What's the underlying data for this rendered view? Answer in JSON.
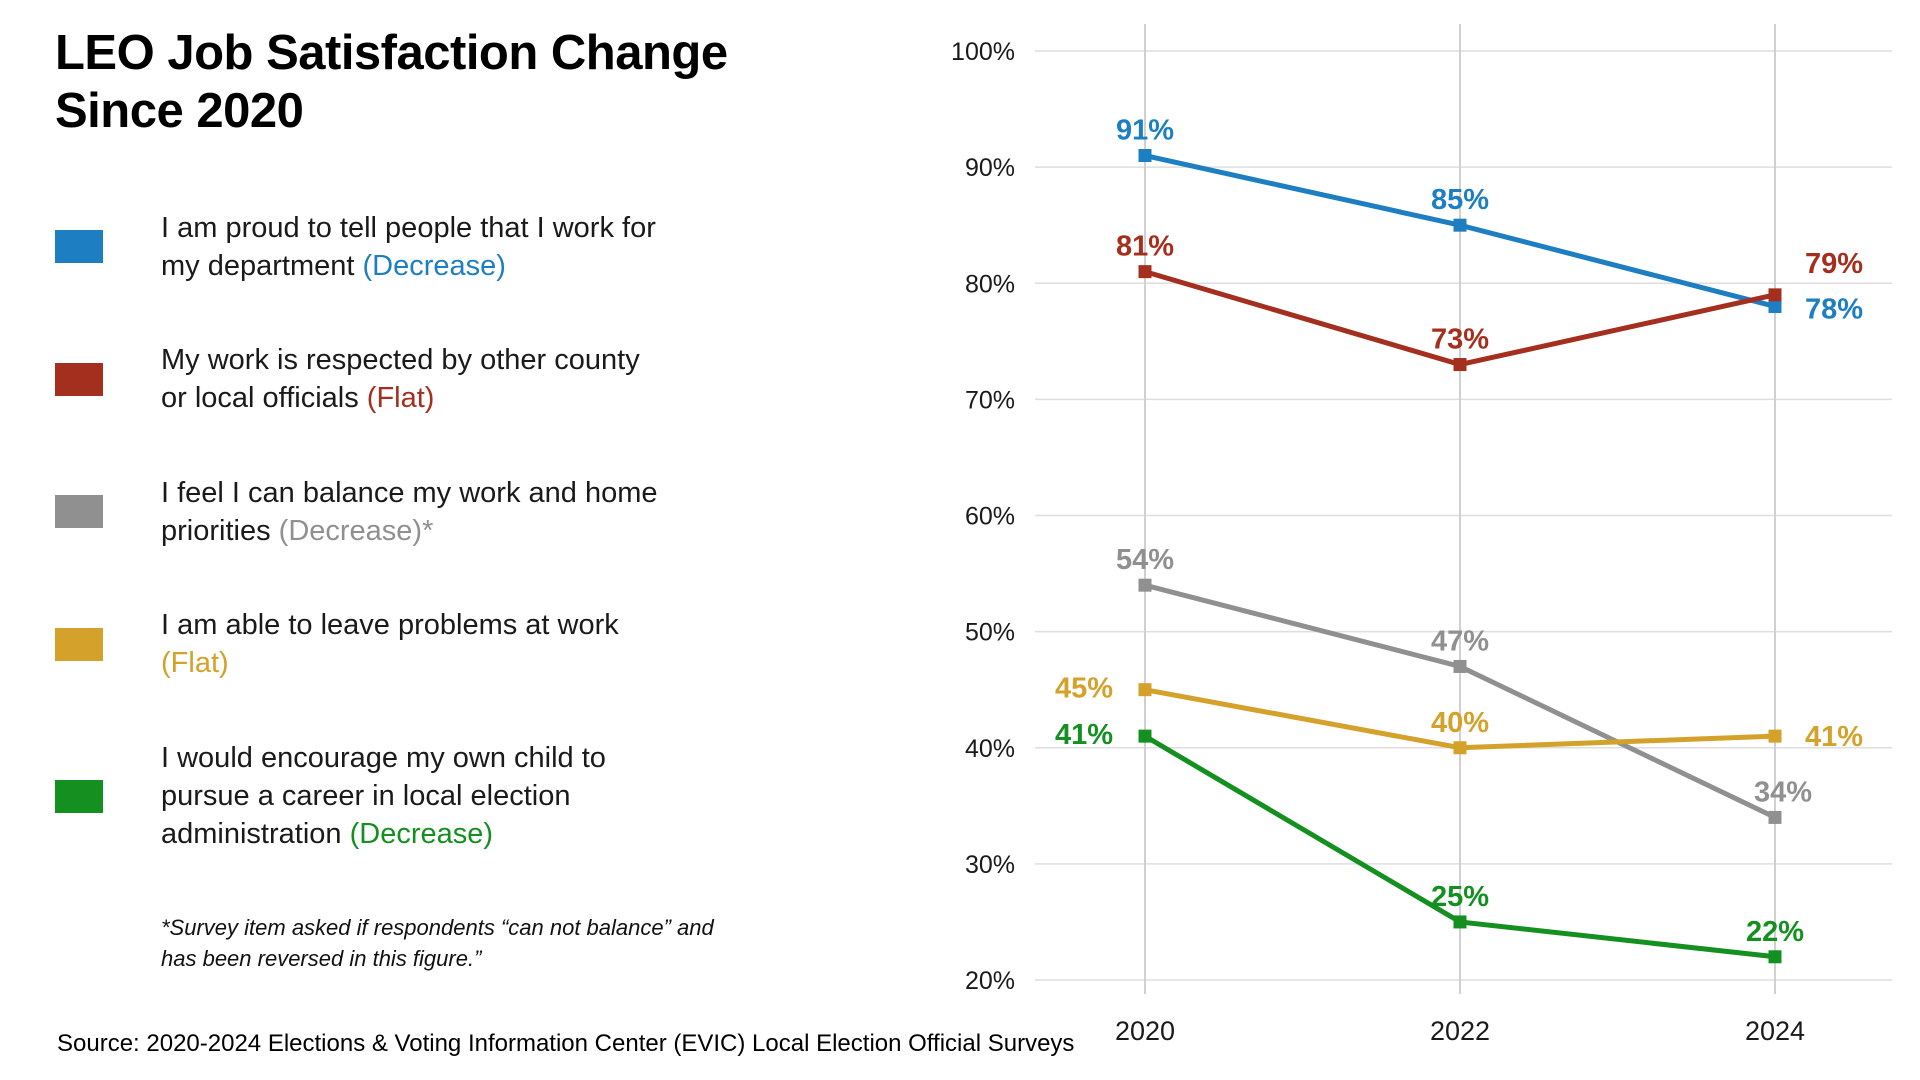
{
  "title": {
    "line1": "LEO Job Satisfaction Change",
    "line2": "Since 2020"
  },
  "legend": [
    {
      "color": "#1e7ec2",
      "lines": [
        [
          {
            "t": "I am proud to tell people that I work for"
          }
        ],
        [
          {
            "t": "my department "
          },
          {
            "t": "(Decrease)",
            "colored": true
          }
        ]
      ]
    },
    {
      "color": "#a52f1f",
      "lines": [
        [
          {
            "t": "My work is respected by other county"
          }
        ],
        [
          {
            "t": "or local officials "
          },
          {
            "t": "(Flat)",
            "colored": true
          }
        ]
      ]
    },
    {
      "color": "#909090",
      "lines": [
        [
          {
            "t": "I feel I can balance my work and home"
          }
        ],
        [
          {
            "t": "priorities "
          },
          {
            "t": "(Decrease)*",
            "colored": true
          }
        ]
      ]
    },
    {
      "color": "#d4a12a",
      "lines": [
        [
          {
            "t": "I am able to leave problems at work"
          }
        ],
        [
          {
            "t": "(Flat)",
            "colored": true
          }
        ]
      ]
    },
    {
      "color": "#13901f",
      "lines": [
        [
          {
            "t": "I would encourage my own child to"
          }
        ],
        [
          {
            "t": "pursue a career in local election"
          }
        ],
        [
          {
            "t": "administration "
          },
          {
            "t": "(Decrease)",
            "colored": true
          }
        ]
      ]
    }
  ],
  "footnote": {
    "line1": "*Survey item asked if respondents “can not balance” and",
    "line2": "has been reversed in this figure.”"
  },
  "source": "Source: 2020-2024 Elections & Voting Information Center (EVIC) Local Election Official Surveys",
  "chart_data": {
    "type": "line",
    "title": "LEO Job Satisfaction Change Since 2020",
    "categories": [
      "2020",
      "2022",
      "2024"
    ],
    "series": [
      {
        "name": "I am proud to tell people that I work for my department",
        "trend": "Decrease",
        "color": "#1e7ec2",
        "values": [
          91,
          85,
          78
        ]
      },
      {
        "name": "My work is respected by other county or local officials",
        "trend": "Flat",
        "color": "#a52f1f",
        "values": [
          81,
          73,
          79
        ]
      },
      {
        "name": "I feel I can balance my work and home priorities",
        "trend": "Decrease",
        "color": "#909090",
        "values": [
          54,
          47,
          34
        ]
      },
      {
        "name": "I am able to leave problems at work",
        "trend": "Flat",
        "color": "#d4a12a",
        "values": [
          45,
          40,
          41
        ]
      },
      {
        "name": "I would encourage my own child to pursue a career in local election administration",
        "trend": "Decrease",
        "color": "#13901f",
        "values": [
          41,
          25,
          22
        ]
      }
    ],
    "ylim": [
      20,
      100
    ],
    "y_ticks": [
      100,
      90,
      80,
      70,
      60,
      50,
      40,
      30,
      20
    ],
    "y_tick_suffix": "%",
    "value_label_suffix": "%",
    "grid": true,
    "marker": "square",
    "legend_position": "left"
  }
}
